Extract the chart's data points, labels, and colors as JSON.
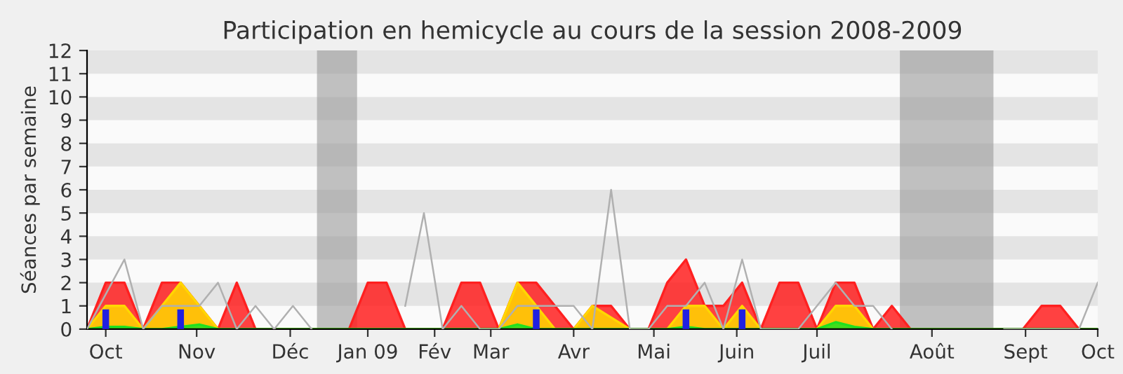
{
  "chart_data": {
    "type": "area",
    "title": "Participation en hemicycle au cours de la session 2008-2009",
    "ylabel": "Séances par semaine",
    "x": [
      "2008-10-01",
      "2008-10-08",
      "2008-10-15",
      "2008-10-22",
      "2008-10-29",
      "2008-11-05",
      "2008-11-12",
      "2008-11-19",
      "2008-11-26",
      "2008-12-03",
      "2008-12-10",
      "2008-12-17",
      "2008-12-24",
      "2008-12-31",
      "2009-01-07",
      "2009-01-14",
      "2009-01-21",
      "2009-01-28",
      "2009-02-04",
      "2009-02-11",
      "2009-02-18",
      "2009-02-25",
      "2009-03-04",
      "2009-03-11",
      "2009-03-18",
      "2009-03-25",
      "2009-04-01",
      "2009-04-08",
      "2009-04-15",
      "2009-04-22",
      "2009-04-29",
      "2009-05-06",
      "2009-05-13",
      "2009-05-20",
      "2009-05-27",
      "2009-06-03",
      "2009-06-10",
      "2009-06-17",
      "2009-06-24",
      "2009-07-01",
      "2009-07-08",
      "2009-07-15",
      "2009-07-22",
      "2009-07-29",
      "2009-08-05",
      "2009-08-12",
      "2009-08-19",
      "2009-08-26",
      "2009-09-02",
      "2009-09-09",
      "2009-09-16",
      "2009-09-23",
      "2009-09-30",
      "2009-10-07",
      "2009-10-14"
    ],
    "series": [
      {
        "color": "#ff2020",
        "values": [
          0,
          2,
          2,
          0,
          2,
          2,
          1,
          0,
          2,
          0,
          0,
          0,
          0,
          0,
          0,
          2,
          2,
          0,
          0,
          0,
          2,
          2,
          0,
          2,
          2,
          1,
          0,
          1,
          1,
          0,
          0,
          2,
          3,
          1,
          1,
          2,
          0,
          2,
          2,
          0,
          2,
          2,
          0,
          1,
          0,
          0,
          0,
          0,
          0,
          0,
          0,
          1,
          1,
          0,
          0
        ]
      },
      {
        "color": "#ffd700",
        "values": [
          0,
          1,
          1,
          0,
          1,
          2,
          1,
          0,
          0,
          0,
          0,
          0,
          0,
          0,
          0,
          0,
          0,
          0,
          0,
          0,
          0,
          0,
          0,
          2,
          1,
          0,
          0,
          1,
          0.5,
          0,
          0,
          0,
          1,
          1,
          0,
          1,
          0,
          0,
          0,
          0,
          1,
          1,
          0,
          0,
          0,
          0,
          0,
          0,
          0,
          0,
          0,
          0,
          0,
          0,
          0
        ]
      },
      {
        "color": "#20e020",
        "values": [
          0,
          0.1,
          0.1,
          0,
          0,
          0.1,
          0.2,
          0,
          0,
          0,
          0,
          0,
          0,
          0,
          0,
          0,
          0,
          0,
          0,
          0,
          0,
          0,
          0,
          0.2,
          0,
          0,
          0,
          0,
          0,
          0,
          0,
          0,
          0.1,
          0,
          0,
          0,
          0,
          0,
          0,
          0,
          0.3,
          0.1,
          0,
          0,
          0,
          0,
          0,
          0,
          0,
          0,
          0,
          0,
          0,
          0,
          0
        ]
      },
      {
        "type": "line",
        "color": "#b0b0b0",
        "values": [
          0,
          1.5,
          3,
          0,
          1,
          1,
          1,
          2,
          0,
          1,
          0,
          1,
          0,
          null,
          null,
          null,
          null,
          1,
          5,
          0,
          1,
          0,
          0,
          1,
          1,
          1,
          1,
          0,
          6,
          0,
          0,
          1,
          1,
          2,
          0,
          3,
          0,
          0,
          0,
          1,
          2,
          1,
          1,
          0,
          null,
          null,
          null,
          null,
          null,
          0,
          0,
          0,
          0,
          0,
          2
        ]
      },
      {
        "type": "bar",
        "color": "#2020e0",
        "x": [
          "2008-10-08",
          "2008-11-05",
          "2009-03-18",
          "2009-05-13",
          "2009-06-03"
        ],
        "values": [
          0.85,
          0.85,
          0.85,
          0.85,
          0.85
        ]
      }
    ],
    "xlim": [
      "2008-10-01",
      "2009-10-14"
    ],
    "ylim": [
      0,
      12
    ],
    "yticks": [
      0,
      1,
      2,
      3,
      4,
      5,
      6,
      7,
      8,
      9,
      10,
      11,
      12
    ],
    "xticks": [
      {
        "value": "2008-10-08",
        "label": "Oct"
      },
      {
        "value": "2008-11-11",
        "label": "Nov"
      },
      {
        "value": "2008-12-16",
        "label": "Déc"
      },
      {
        "value": "2009-01-14",
        "label": "Jan 09"
      },
      {
        "value": "2009-02-08",
        "label": "Fév"
      },
      {
        "value": "2009-03-01",
        "label": "Mar"
      },
      {
        "value": "2009-04-01",
        "label": "Avr"
      },
      {
        "value": "2009-05-01",
        "label": "Mai"
      },
      {
        "value": "2009-06-01",
        "label": "Juin"
      },
      {
        "value": "2009-07-01",
        "label": "Juil"
      },
      {
        "value": "2009-08-13",
        "label": "Août"
      },
      {
        "value": "2009-09-17",
        "label": "Sept"
      },
      {
        "value": "2009-10-14",
        "label": "Oct"
      }
    ],
    "bands": [
      {
        "axis": "x",
        "from": "2008-12-26",
        "to": "2009-01-10",
        "color": "#999999"
      },
      {
        "axis": "x",
        "from": "2009-08-01",
        "to": "2009-09-05",
        "color": "#999999"
      }
    ],
    "legend": false
  }
}
